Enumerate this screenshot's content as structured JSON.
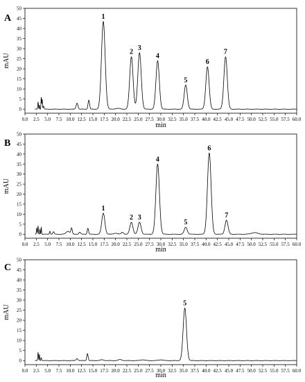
{
  "chart_data": [
    {
      "type": "line",
      "panel_label": "A",
      "xlabel": "min",
      "ylabel": "mAU",
      "xlim": [
        0,
        60
      ],
      "ylim": [
        -2,
        50
      ],
      "x_ticks": [
        0.0,
        2.5,
        5.0,
        7.5,
        10.0,
        12.5,
        15.0,
        17.5,
        20.0,
        22.5,
        25.0,
        27.5,
        30.0,
        32.5,
        35.0,
        37.5,
        40.0,
        42.5,
        45.0,
        47.5,
        50.0,
        52.5,
        55.0,
        57.5,
        60.0
      ],
      "x_tick_labels": [
        "0.0",
        "2.5",
        "5.0",
        "7.5",
        "10.0",
        "12.5",
        "15.0",
        "17.5",
        "20.0",
        "22.5",
        "25.0",
        "27.5",
        "30.0",
        "32.5",
        "35.0",
        "37.5",
        "40.0",
        "42.5",
        "45.0",
        "47.5",
        "50.0",
        "52.5",
        "55.0",
        "57.5",
        "60.0"
      ],
      "y_ticks": [
        0,
        5,
        10,
        15,
        20,
        25,
        30,
        35,
        40,
        45,
        50
      ],
      "y_tick_labels": [
        "0",
        "5",
        "10",
        "15",
        "20",
        "25",
        "30",
        "35",
        "40",
        "45",
        "50"
      ],
      "peaks": [
        {
          "label": "1",
          "rt": 17.3,
          "height": 43.5
        },
        {
          "label": "2",
          "rt": 23.5,
          "height": 26.0
        },
        {
          "label": "3",
          "rt": 25.3,
          "height": 28.0
        },
        {
          "label": "4",
          "rt": 29.3,
          "height": 24.0
        },
        {
          "label": "5",
          "rt": 35.5,
          "height": 12.0
        },
        {
          "label": "6",
          "rt": 40.3,
          "height": 21.0
        },
        {
          "label": "7",
          "rt": 44.3,
          "height": 26.0
        }
      ]
    },
    {
      "type": "line",
      "panel_label": "B",
      "xlabel": "min",
      "ylabel": "mAU",
      "xlim": [
        0,
        60
      ],
      "ylim": [
        -2,
        50
      ],
      "x_ticks": [
        0.0,
        2.5,
        5.0,
        7.5,
        10.0,
        12.5,
        15.0,
        17.5,
        20.0,
        22.5,
        25.0,
        27.5,
        30.0,
        32.5,
        35.0,
        37.5,
        40.0,
        42.5,
        45.0,
        47.5,
        50.0,
        52.5,
        55.0,
        57.5,
        60.0
      ],
      "x_tick_labels": [
        "0.0",
        "2.5",
        "5.0",
        "7.5",
        "10.0",
        "12.5",
        "15.0",
        "17.5",
        "20.0",
        "22.5",
        "25.0",
        "27.5",
        "30.0",
        "32.5",
        "35.0",
        "37.5",
        "40.0",
        "42.5",
        "45.0",
        "47.5",
        "50.0",
        "52.5",
        "55.0",
        "57.5",
        "60.0"
      ],
      "y_ticks": [
        0,
        5,
        10,
        15,
        20,
        25,
        30,
        35,
        40,
        45,
        50
      ],
      "y_tick_labels": [
        "0",
        "5",
        "10",
        "15",
        "20",
        "25",
        "30",
        "35",
        "40",
        "45",
        "50"
      ],
      "peaks": [
        {
          "label": "1",
          "rt": 17.3,
          "height": 10.5
        },
        {
          "label": "2",
          "rt": 23.5,
          "height": 6.0
        },
        {
          "label": "3",
          "rt": 25.3,
          "height": 6.0
        },
        {
          "label": "4",
          "rt": 29.3,
          "height": 35.0
        },
        {
          "label": "5",
          "rt": 35.5,
          "height": 3.5
        },
        {
          "label": "6",
          "rt": 40.7,
          "height": 40.5
        },
        {
          "label": "7",
          "rt": 44.5,
          "height": 7.0
        }
      ]
    },
    {
      "type": "line",
      "panel_label": "C",
      "xlabel": "min",
      "ylabel": "mAU",
      "xlim": [
        0,
        60
      ],
      "ylim": [
        -2,
        50
      ],
      "x_ticks": [
        0.0,
        2.5,
        5.0,
        7.5,
        10.0,
        12.5,
        15.0,
        17.5,
        20.0,
        22.5,
        25.0,
        27.5,
        30.0,
        32.5,
        35.0,
        37.5,
        40.0,
        42.5,
        45.0,
        47.5,
        50.0,
        52.5,
        55.0,
        57.5,
        60.0
      ],
      "x_tick_labels": [
        "0.0",
        "2.5",
        "5.0",
        "7.5",
        "10.0",
        "12.5",
        "15.0",
        "17.5",
        "20.0",
        "22.5",
        "25.0",
        "27.5",
        "30.0",
        "32.5",
        "35.0",
        "37.5",
        "40.0",
        "42.5",
        "45.0",
        "47.5",
        "50.0",
        "52.5",
        "55.0",
        "57.5",
        "60.0"
      ],
      "y_ticks": [
        0,
        5,
        10,
        15,
        20,
        25,
        30,
        35,
        40,
        45,
        50
      ],
      "y_tick_labels": [
        "0",
        "5",
        "10",
        "15",
        "20",
        "25",
        "30",
        "35",
        "40",
        "45",
        "50"
      ],
      "peaks": [
        {
          "label": "5",
          "rt": 35.3,
          "height": 26.0
        }
      ]
    }
  ]
}
